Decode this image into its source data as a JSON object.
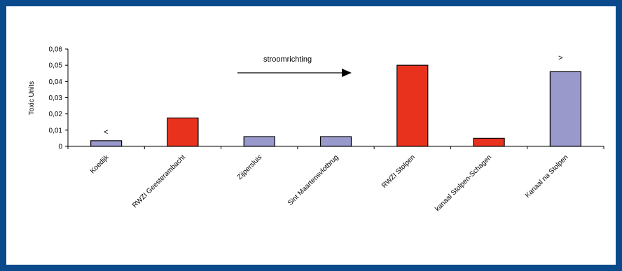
{
  "chart_data": {
    "type": "bar",
    "title": "",
    "ylabel": "Toxic Units",
    "xlabel": "",
    "ylim": [
      0,
      0.06
    ],
    "yticks": [
      "0",
      "0,01",
      "0,02",
      "0,03",
      "0,04",
      "0,05",
      "0,06"
    ],
    "categories": [
      "Koedijk",
      "RWZI Geesterambacht",
      "Zijpersluis",
      "Sint Maartensvlotbrug",
      "RWZI Stolpen",
      "kanaal Stolpen-Schagen",
      "Kanaal na Stolpen"
    ],
    "values": [
      0.0035,
      0.0175,
      0.006,
      0.006,
      0.05,
      0.005,
      0.046
    ],
    "bar_colors": [
      "#9999cc",
      "#e8321e",
      "#9999cc",
      "#9999cc",
      "#e8321e",
      "#e8321e",
      "#9999cc"
    ],
    "annotations": {
      "arrow_label": "stroomrichting",
      "less_than_marker": "<",
      "greater_than_marker": ">"
    },
    "grid": false,
    "legend": "none"
  },
  "colors": {
    "border": "#0a4a8c",
    "reduced_bar": "#9999cc",
    "highlight_bar": "#e8321e"
  }
}
